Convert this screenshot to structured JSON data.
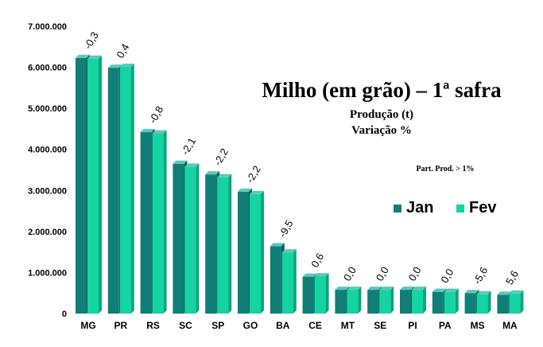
{
  "colors": {
    "jan_front": "#0f7f78",
    "jan_side": "#075f5a",
    "fev_front": "#14d4a2",
    "fev_side": "#0aa77c",
    "top_cap": "#5fc8b7"
  },
  "chart_data": {
    "type": "bar",
    "title": "Milho (em grão) – 1ª safra",
    "subtitle_1": "Produção (t)",
    "subtitle_2": "Variação %",
    "note": "Part. Prod. > 1%",
    "categories": [
      "MG",
      "PR",
      "RS",
      "SC",
      "SP",
      "GO",
      "BA",
      "CE",
      "MT",
      "SE",
      "PI",
      "PA",
      "MS",
      "MA"
    ],
    "series": [
      {
        "name": "Jan",
        "values": [
          6230000,
          5990000,
          4420000,
          3650000,
          3390000,
          2970000,
          1640000,
          900000,
          580000,
          580000,
          580000,
          530000,
          500000,
          460000
        ]
      },
      {
        "name": "Fev",
        "values": [
          6210000,
          6010000,
          4390000,
          3580000,
          3320000,
          2910000,
          1490000,
          910000,
          580000,
          580000,
          580000,
          530000,
          470000,
          490000
        ]
      }
    ],
    "variation_labels": [
      "-0,3",
      "0,4",
      "-0,8",
      "-2,1",
      "-2,2",
      "-2,2",
      "-9,5",
      "0,6",
      "0,0",
      "0,0",
      "0,0",
      "0,0",
      "-5,6",
      "5,6"
    ],
    "yticks": [
      "0",
      "1.000.000",
      "2.000.000",
      "3.000.000",
      "4.000.000",
      "5.000.000",
      "6.000.000",
      "7.000.000"
    ],
    "ylim": [
      0,
      7000000
    ],
    "legend_position": "right",
    "grid": false
  }
}
